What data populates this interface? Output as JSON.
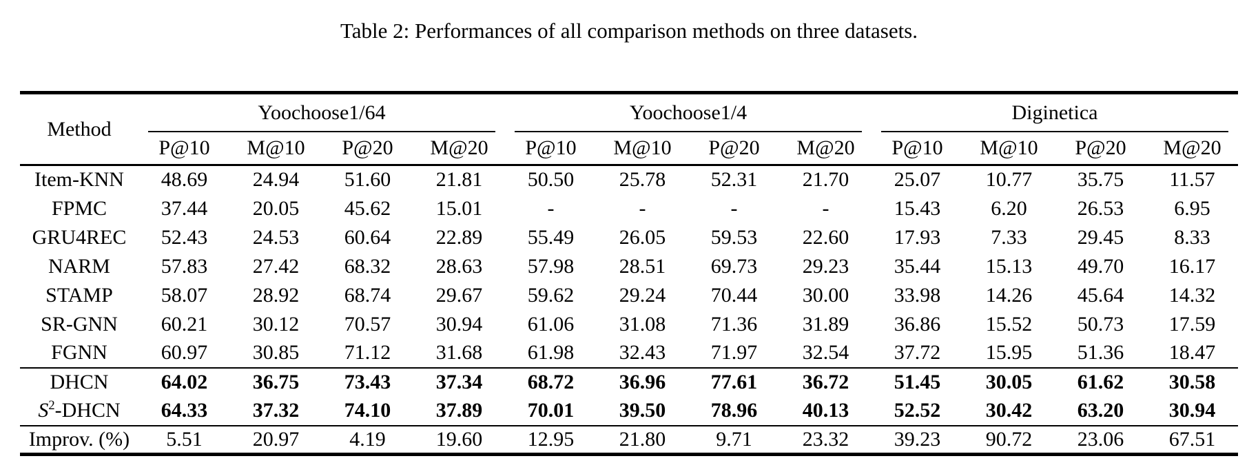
{
  "caption": "Table 2: Performances of all comparison methods on three datasets.",
  "colors": {
    "text": "#000000",
    "background": "#ffffff"
  },
  "table": {
    "method_header": "Method",
    "groups": [
      {
        "name": "Yoochoose1/64"
      },
      {
        "name": "Yoochoose1/4"
      },
      {
        "name": "Diginetica"
      }
    ],
    "metrics": [
      "P@10",
      "M@10",
      "P@20",
      "M@20"
    ],
    "rows": [
      {
        "method": "Item-KNN",
        "values": [
          "48.69",
          "24.94",
          "51.60",
          "21.81",
          "50.50",
          "25.78",
          "52.31",
          "21.70",
          "25.07",
          "10.77",
          "35.75",
          "11.57"
        ]
      },
      {
        "method": "FPMC",
        "values": [
          "37.44",
          "20.05",
          "45.62",
          "15.01",
          "-",
          "-",
          "-",
          "-",
          "15.43",
          "6.20",
          "26.53",
          "6.95"
        ]
      },
      {
        "method": "GRU4REC",
        "values": [
          "52.43",
          "24.53",
          "60.64",
          "22.89",
          "55.49",
          "26.05",
          "59.53",
          "22.60",
          "17.93",
          "7.33",
          "29.45",
          "8.33"
        ]
      },
      {
        "method": "NARM",
        "values": [
          "57.83",
          "27.42",
          "68.32",
          "28.63",
          "57.98",
          "28.51",
          "69.73",
          "29.23",
          "35.44",
          "15.13",
          "49.70",
          "16.17"
        ]
      },
      {
        "method": "STAMP",
        "values": [
          "58.07",
          "28.92",
          "68.74",
          "29.67",
          "59.62",
          "29.24",
          "70.44",
          "30.00",
          "33.98",
          "14.26",
          "45.64",
          "14.32"
        ]
      },
      {
        "method": "SR-GNN",
        "values": [
          "60.21",
          "30.12",
          "70.57",
          "30.94",
          "61.06",
          "31.08",
          "71.36",
          "31.89",
          "36.86",
          "15.52",
          "50.73",
          "17.59"
        ]
      },
      {
        "method": "FGNN",
        "values": [
          "60.97",
          "30.85",
          "71.12",
          "31.68",
          "61.98",
          "32.43",
          "71.97",
          "32.54",
          "37.72",
          "15.95",
          "51.36",
          "18.47"
        ]
      },
      {
        "method": "DHCN",
        "rule_above": true,
        "bold_values": true,
        "values": [
          "64.02",
          "36.75",
          "73.43",
          "37.34",
          "68.72",
          "36.96",
          "77.61",
          "36.72",
          "51.45",
          "30.05",
          "61.62",
          "30.58"
        ]
      },
      {
        "method": "S2-DHCN",
        "method_parts": [
          {
            "t": "S",
            "s": "italic"
          },
          {
            "t": "2",
            "s": "sup"
          },
          {
            "t": "-DHCN",
            "s": "normal"
          }
        ],
        "bold_values": true,
        "values": [
          "64.33",
          "37.32",
          "74.10",
          "37.89",
          "70.01",
          "39.50",
          "78.96",
          "40.13",
          "52.52",
          "30.42",
          "63.20",
          "30.94"
        ]
      },
      {
        "method": "Improv. (%)",
        "rule_above": true,
        "values": [
          "5.51",
          "20.97",
          "4.19",
          "19.60",
          "12.95",
          "21.80",
          "9.71",
          "23.32",
          "39.23",
          "90.72",
          "23.06",
          "67.51"
        ]
      }
    ]
  }
}
